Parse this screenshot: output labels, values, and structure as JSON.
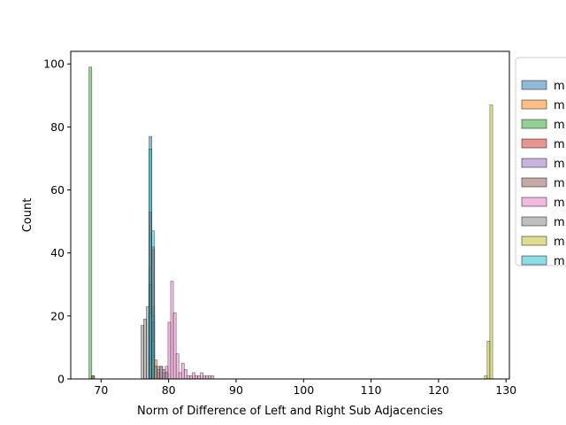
{
  "chart_data": {
    "type": "histogram",
    "xlabel": "Norm of Difference of Left and Right Sub Adjacencies",
    "ylabel": "Count",
    "xlim": [
      65.5,
      130.5
    ],
    "ylim": [
      0,
      104
    ],
    "x_ticks": [
      70,
      80,
      90,
      100,
      110,
      120,
      130
    ],
    "y_ticks": [
      0,
      20,
      40,
      60,
      80,
      100
    ],
    "bin_width": 0.42,
    "legend_placement": "right (partially cut off)",
    "series": [
      {
        "label": "m",
        "color": "#1f77b4",
        "bins": [
          [
            77.1,
            77
          ],
          [
            77.5,
            23
          ]
        ]
      },
      {
        "label": "m",
        "color": "#ff7f0e",
        "bins": [
          [
            77.5,
            41
          ],
          [
            77.9,
            6
          ],
          [
            78.3,
            2
          ]
        ]
      },
      {
        "label": "m",
        "color": "#2ca02c",
        "bins": [
          [
            68.2,
            99
          ],
          [
            68.6,
            1
          ]
        ]
      },
      {
        "label": "m",
        "color": "#d62728",
        "bins": [
          [
            77.1,
            53
          ],
          [
            77.5,
            42
          ]
        ]
      },
      {
        "label": "m",
        "color": "#9467bd",
        "bins": [
          [
            77.1,
            35
          ],
          [
            77.5,
            20
          ]
        ]
      },
      {
        "label": "m",
        "color": "#8c564b",
        "bins": [
          [
            68.6,
            1
          ],
          [
            77.1,
            30
          ],
          [
            77.5,
            18
          ]
        ]
      },
      {
        "label": "m",
        "color": "#e377c2",
        "bins": [
          [
            78.3,
            3
          ],
          [
            78.7,
            4
          ],
          [
            79.1,
            2
          ],
          [
            79.5,
            4
          ],
          [
            79.9,
            18
          ],
          [
            80.3,
            31
          ],
          [
            80.7,
            21
          ],
          [
            81.1,
            8
          ],
          [
            81.5,
            2
          ],
          [
            81.9,
            5
          ],
          [
            82.3,
            3
          ],
          [
            82.7,
            1
          ],
          [
            83.1,
            1
          ],
          [
            83.5,
            2
          ],
          [
            83.9,
            1
          ],
          [
            84.3,
            1
          ],
          [
            84.7,
            2
          ],
          [
            85.1,
            1
          ],
          [
            85.5,
            1
          ],
          [
            85.9,
            1
          ],
          [
            86.3,
            1
          ]
        ]
      },
      {
        "label": "m",
        "color": "#7f7f7f",
        "bins": [
          [
            75.9,
            17
          ],
          [
            76.3,
            19
          ],
          [
            76.7,
            23
          ],
          [
            77.1,
            21
          ],
          [
            77.5,
            12
          ],
          [
            77.9,
            4
          ],
          [
            78.3,
            4
          ],
          [
            78.7,
            4
          ],
          [
            79.1,
            3
          ],
          [
            79.5,
            2
          ]
        ]
      },
      {
        "label": "m",
        "color": "#bcbd22",
        "bins": [
          [
            126.8,
            1
          ],
          [
            127.2,
            12
          ],
          [
            127.6,
            87
          ]
        ]
      },
      {
        "label": "m",
        "color": "#17becf",
        "bins": [
          [
            77.1,
            73
          ],
          [
            77.5,
            47
          ]
        ]
      }
    ]
  }
}
